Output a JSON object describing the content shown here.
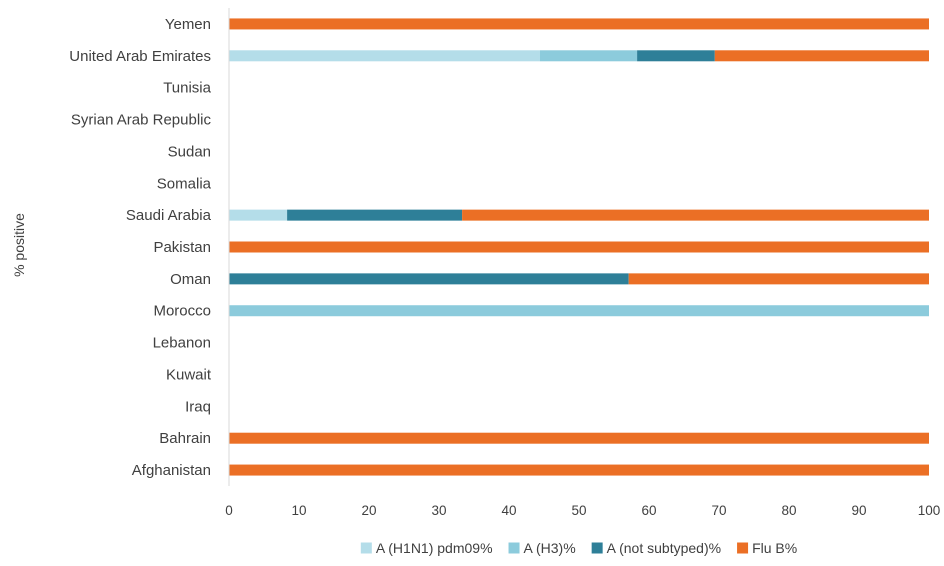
{
  "chart_data": {
    "type": "bar",
    "orientation": "horizontal",
    "stacked": true,
    "title": "",
    "xlabel": "",
    "ylabel": "% positive",
    "xlim": [
      0,
      100
    ],
    "xticks": [
      "0",
      "10",
      "20",
      "30",
      "40",
      "50",
      "60",
      "70",
      "80",
      "90",
      "100"
    ],
    "grid": false,
    "legend_position": "bottom",
    "categories": [
      "Yemen",
      "United Arab Emirates",
      "Tunisia",
      "Syrian Arab Republic",
      "Sudan",
      "Somalia",
      "Saudi Arabia",
      "Pakistan",
      "Oman",
      "Morocco",
      "Lebanon",
      "Kuwait",
      "Iraq",
      "Bahrain",
      "Afghanistan"
    ],
    "series": [
      {
        "name": "A (H1N1) pdm09%",
        "color": "#b4dde9",
        "values": [
          0,
          44.4,
          0,
          0,
          0,
          0,
          8.3,
          0,
          0,
          0,
          0,
          0,
          0,
          0,
          0
        ]
      },
      {
        "name": "A (H3)%",
        "color": "#8ccbdc",
        "values": [
          0,
          13.9,
          0,
          0,
          0,
          0,
          0,
          0,
          0,
          100,
          0,
          0,
          0,
          0,
          0
        ]
      },
      {
        "name": "A (not subtyped)%",
        "color": "#2e7f98",
        "values": [
          0,
          11.1,
          0,
          0,
          0,
          0,
          25.0,
          0,
          57.1,
          0,
          0,
          0,
          0,
          0,
          0
        ]
      },
      {
        "name": "Flu B%",
        "color": "#eb6f25",
        "values": [
          100,
          30.6,
          0,
          0,
          0,
          0,
          66.7,
          100,
          42.9,
          0,
          0,
          0,
          0,
          100,
          100
        ]
      }
    ]
  }
}
